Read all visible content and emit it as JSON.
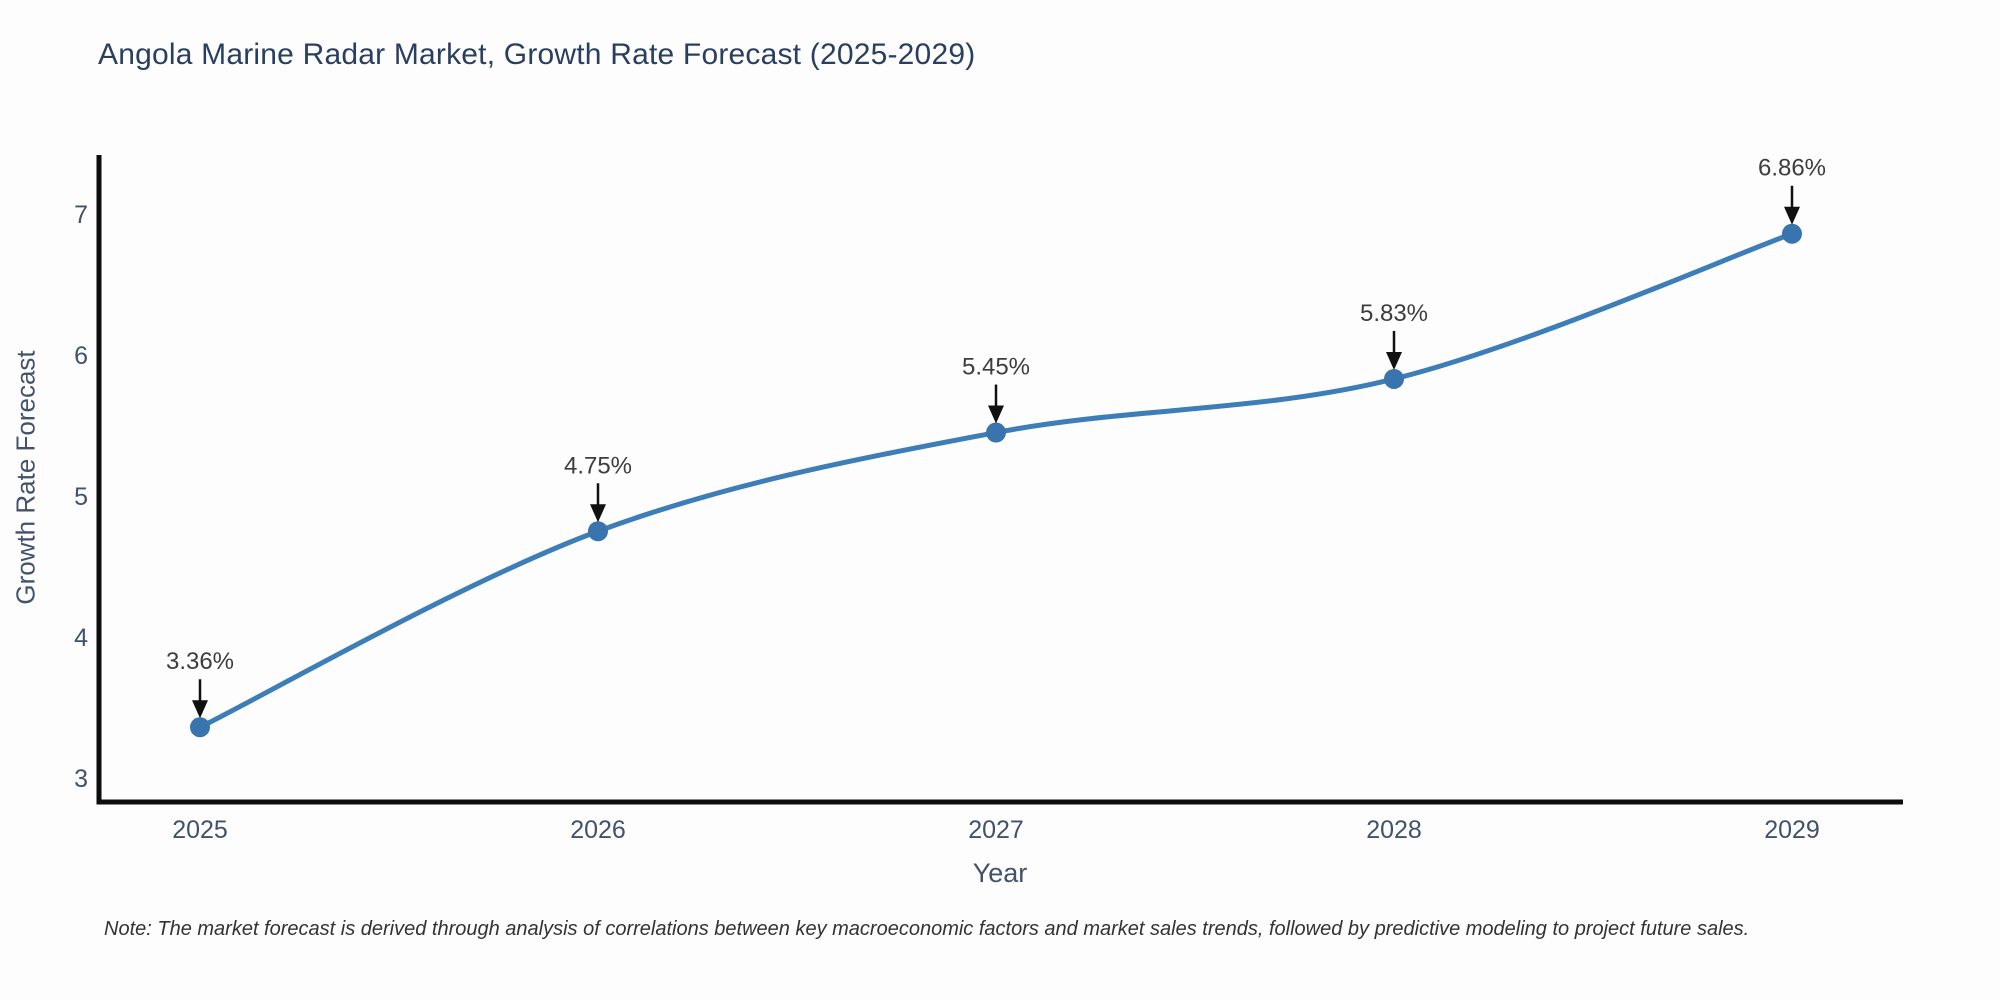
{
  "chart_data": {
    "type": "line",
    "title": "Angola Marine Radar Market, Growth Rate Forecast (2025-2029)",
    "xlabel": "Year",
    "ylabel": "Growth Rate Forecast",
    "x": [
      2025,
      2026,
      2027,
      2028,
      2029
    ],
    "x_tick_labels": [
      "2025",
      "2026",
      "2027",
      "2028",
      "2029"
    ],
    "series": [
      {
        "name": "Growth Rate Forecast",
        "values": [
          3.36,
          4.75,
          5.45,
          5.83,
          6.86
        ],
        "point_labels": [
          "3.36%",
          "4.75%",
          "5.45%",
          "5.83%",
          "6.86%"
        ]
      }
    ],
    "y_ticks": [
      3,
      4,
      5,
      6,
      7
    ],
    "ylim": [
      2.83,
      7.42
    ],
    "grid": false,
    "legend_position": "none",
    "annotations": "each point labeled with percent value and black down-arrow",
    "colors": {
      "line": "#3d7db8",
      "marker": "#3a74ae",
      "axis": "#0d0d0d",
      "arrow": "#111111",
      "annotation_text": "#3d3d3d",
      "tick_text": "#42526b",
      "title_text": "#2a3f5f"
    }
  },
  "note": "Note: The market forecast is derived through analysis of correlations between key macroeconomic factors and market sales trends, followed by predictive modeling to project future sales."
}
